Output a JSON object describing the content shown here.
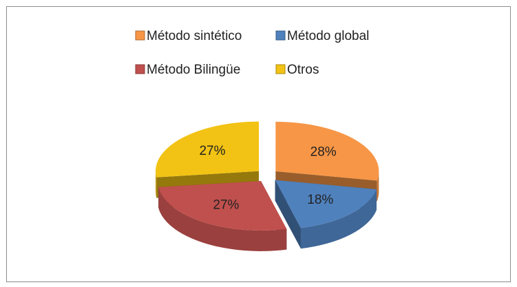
{
  "chart_data": {
    "type": "pie3d",
    "categories": [
      "Método sintético",
      "Método global",
      "Método Bilingüe",
      "Otros"
    ],
    "values": [
      28,
      18,
      27,
      27
    ],
    "value_labels": [
      "28%",
      "18%",
      "27%",
      "27%"
    ],
    "colors": [
      "#F79646",
      "#4F81BD",
      "#C0504D",
      "#F2C314"
    ],
    "legend": "top"
  }
}
